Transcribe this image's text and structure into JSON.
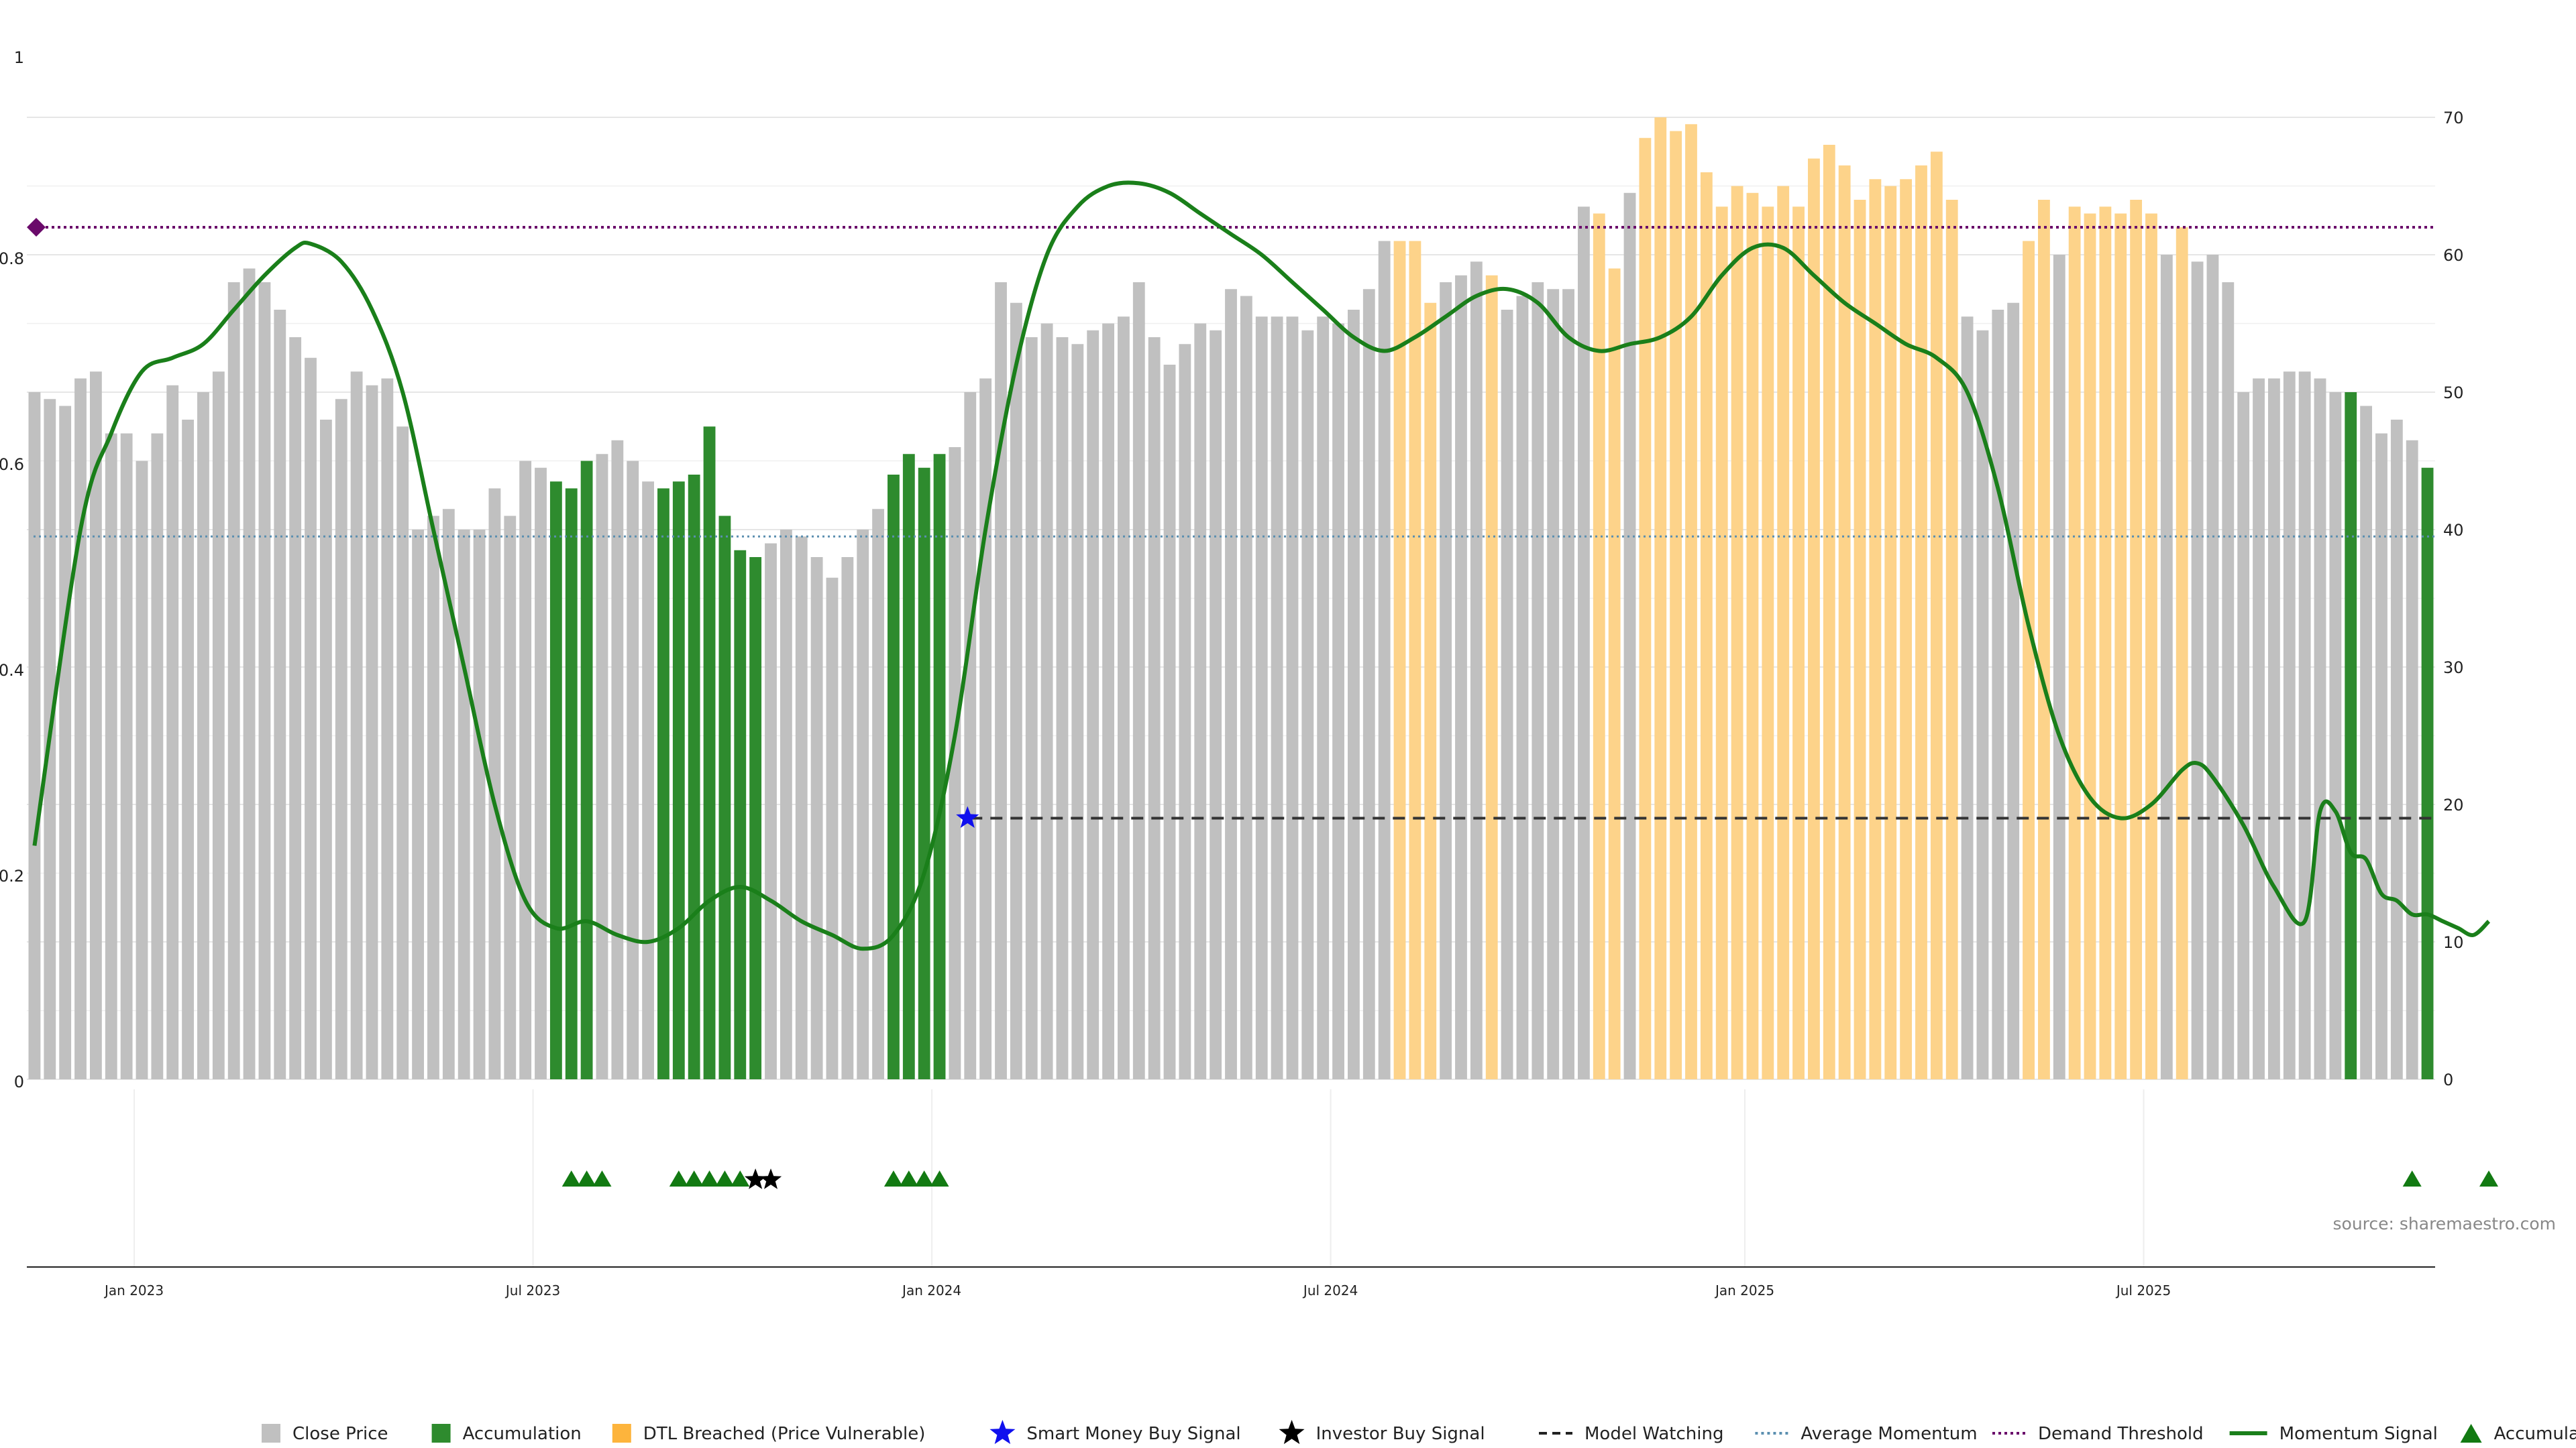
{
  "chart_data": {
    "type": "bar",
    "source_note": "source: sharemaestro.com",
    "left_axis": {
      "ticks": [
        "0",
        "0.2",
        "0.4",
        "0.6",
        "0.8",
        "1"
      ]
    },
    "right_axis": {
      "ticks": [
        "0",
        "10",
        "20",
        "30",
        "40",
        "50",
        "60",
        "70"
      ]
    },
    "x_ticks": [
      "Jan 2023",
      "Jul 2023",
      "Jan 2024",
      "Jul 2024",
      "Jan 2025",
      "Jul 2025"
    ],
    "colors": {
      "close": "#c0c0c0",
      "accumulation": "#2e8b2e",
      "dtl": "#fdd38a",
      "momentum": "#1a7f1a",
      "avg_momentum": "#5b8fb0",
      "demand": "#6a0a6a",
      "watching": "#333333"
    },
    "close_price": [
      50,
      49.5,
      49,
      51,
      51.5,
      47,
      47,
      45,
      47,
      50.5,
      48,
      50,
      51.5,
      58,
      59,
      58,
      56,
      54,
      52.5,
      48,
      49.5,
      51.5,
      50.5,
      51,
      47.5,
      40,
      41,
      41.5,
      40,
      40,
      43,
      41,
      45,
      44.5,
      43.5,
      43,
      45,
      45.5,
      46.5,
      45,
      43.5,
      43,
      43.5,
      44,
      47.5,
      41,
      38.5,
      38,
      39,
      40,
      39.5,
      38,
      36.5,
      38,
      40,
      41.5,
      44,
      45.5,
      44.5,
      45.5,
      46,
      50,
      51,
      58,
      56.5,
      54,
      55,
      54,
      53.5,
      54.5,
      55,
      55.5,
      58,
      54,
      52,
      53.5,
      55,
      54.5,
      57.5,
      57,
      55.5,
      55.5,
      55.5,
      54.5,
      55.5,
      55,
      56,
      57.5,
      61,
      61,
      61,
      56.5,
      58,
      58.5,
      59.5,
      58.5,
      56,
      57,
      58,
      57.5,
      57.5,
      63.5,
      63,
      59,
      64.5,
      68.5,
      70,
      69,
      69.5,
      66,
      63.5,
      65,
      64.5,
      63.5,
      65,
      63.5,
      67,
      68,
      66.5,
      64,
      65.5,
      65,
      65.5,
      66.5,
      67.5,
      64,
      55.5,
      54.5,
      56,
      56.5,
      61,
      64,
      60,
      63.5,
      63,
      63.5,
      63,
      64,
      63,
      60,
      62,
      59.5,
      60,
      58,
      50,
      51,
      51,
      51.5,
      51.5,
      51,
      50,
      50,
      49,
      47,
      48,
      46.5,
      44.5
    ],
    "bar_type": [
      "close",
      "close",
      "close",
      "close",
      "close",
      "close",
      "close",
      "close",
      "close",
      "close",
      "close",
      "close",
      "close",
      "close",
      "close",
      "close",
      "close",
      "close",
      "close",
      "close",
      "close",
      "close",
      "close",
      "close",
      "close",
      "close",
      "close",
      "close",
      "close",
      "close",
      "close",
      "close",
      "close",
      "close",
      "accumulation",
      "accumulation",
      "accumulation",
      "close",
      "close",
      "close",
      "close",
      "accumulation",
      "accumulation",
      "accumulation",
      "accumulation",
      "accumulation",
      "accumulation",
      "accumulation",
      "close",
      "close",
      "close",
      "close",
      "close",
      "close",
      "close",
      "close",
      "accumulation",
      "accumulation",
      "accumulation",
      "accumulation",
      "close",
      "close",
      "close",
      "close",
      "close",
      "close",
      "close",
      "close",
      "close",
      "close",
      "close",
      "close",
      "close",
      "close",
      "close",
      "close",
      "close",
      "close",
      "close",
      "close",
      "close",
      "close",
      "close",
      "close",
      "close",
      "close",
      "close",
      "close",
      "close",
      "dtl",
      "dtl",
      "dtl",
      "close",
      "close",
      "close",
      "dtl",
      "close",
      "close",
      "close",
      "close",
      "close",
      "close",
      "dtl",
      "dtl",
      "close",
      "dtl",
      "dtl",
      "dtl",
      "dtl",
      "dtl",
      "dtl",
      "dtl",
      "dtl",
      "dtl",
      "dtl",
      "dtl",
      "dtl",
      "dtl",
      "dtl",
      "dtl",
      "dtl",
      "dtl",
      "dtl",
      "dtl",
      "dtl",
      "dtl",
      "close",
      "close",
      "close",
      "close",
      "dtl",
      "dtl",
      "close",
      "dtl",
      "dtl",
      "dtl",
      "dtl",
      "dtl",
      "dtl",
      "close",
      "dtl",
      "close",
      "close",
      "close",
      "close",
      "close",
      "close",
      "close",
      "close",
      "close",
      "close",
      "accumulation",
      "close",
      "close",
      "close",
      "close",
      "accumulation"
    ],
    "momentum_signal": [
      [
        0,
        17
      ],
      [
        3,
        40
      ],
      [
        5,
        47
      ],
      [
        7,
        51.5
      ],
      [
        9,
        52.5
      ],
      [
        11,
        53.5
      ],
      [
        13,
        56
      ],
      [
        15,
        58.5
      ],
      [
        17,
        60.5
      ],
      [
        18,
        60.8
      ],
      [
        20,
        59.5
      ],
      [
        22,
        56
      ],
      [
        24,
        50
      ],
      [
        26,
        40
      ],
      [
        28,
        30
      ],
      [
        30,
        20
      ],
      [
        32,
        13
      ],
      [
        34,
        11
      ],
      [
        36,
        11.5
      ],
      [
        38,
        10.5
      ],
      [
        40,
        10
      ],
      [
        42,
        11
      ],
      [
        44,
        13
      ],
      [
        46,
        14
      ],
      [
        48,
        13
      ],
      [
        50,
        11.5
      ],
      [
        52,
        10.5
      ],
      [
        54,
        9.5
      ],
      [
        56,
        10.5
      ],
      [
        58,
        15
      ],
      [
        60,
        25
      ],
      [
        62,
        40
      ],
      [
        64,
        52
      ],
      [
        66,
        60
      ],
      [
        68,
        63.5
      ],
      [
        70,
        65
      ],
      [
        72,
        65.2
      ],
      [
        74,
        64.5
      ],
      [
        76,
        63
      ],
      [
        78,
        61.5
      ],
      [
        80,
        60
      ],
      [
        82,
        58
      ],
      [
        84,
        56
      ],
      [
        86,
        54
      ],
      [
        88,
        53
      ],
      [
        90,
        54
      ],
      [
        92,
        55.5
      ],
      [
        94,
        57
      ],
      [
        96,
        57.5
      ],
      [
        98,
        56.5
      ],
      [
        100,
        54
      ],
      [
        102,
        53
      ],
      [
        104,
        53.5
      ],
      [
        106,
        54
      ],
      [
        108,
        55.5
      ],
      [
        110,
        58.5
      ],
      [
        112,
        60.5
      ],
      [
        114,
        60.5
      ],
      [
        116,
        58.5
      ],
      [
        118,
        56.5
      ],
      [
        120,
        55
      ],
      [
        122,
        53.5
      ],
      [
        124,
        52.5
      ],
      [
        126,
        50
      ],
      [
        128,
        43
      ],
      [
        130,
        33
      ],
      [
        132,
        25
      ],
      [
        134,
        20.5
      ],
      [
        136,
        19
      ],
      [
        138,
        20
      ],
      [
        140,
        22.5
      ],
      [
        141,
        23
      ],
      [
        142,
        22
      ],
      [
        144,
        18.5
      ],
      [
        146,
        14
      ],
      [
        148,
        11.5
      ],
      [
        149,
        19.5
      ],
      [
        150,
        19.5
      ],
      [
        151,
        16.5
      ],
      [
        152,
        16
      ],
      [
        153,
        13.5
      ],
      [
        154,
        13
      ],
      [
        155,
        12
      ],
      [
        156,
        12
      ],
      [
        157,
        11.5
      ],
      [
        158,
        11
      ],
      [
        159,
        10.5
      ],
      [
        160,
        11.5
      ]
    ],
    "model_watching": {
      "value": 19,
      "start_index": 61
    },
    "average_momentum": 39.5,
    "demand_threshold": 62,
    "smart_money_buy_signal_index": 61,
    "accumulation_markers": [
      35,
      36,
      37,
      42,
      43,
      44,
      45,
      46,
      56,
      57,
      58,
      59,
      155,
      160
    ],
    "investor_buy_markers": [
      47,
      48
    ],
    "legend": [
      {
        "label": "Close Price",
        "kind": "square",
        "color": "#c0c0c0"
      },
      {
        "label": "Accumulation",
        "kind": "square",
        "color": "#2e8b2e"
      },
      {
        "label": "DTL Breached (Price Vulnerable)",
        "kind": "square",
        "color": "#fdb43c"
      },
      {
        "label": "Smart Money Buy Signal",
        "kind": "star",
        "color": "#1010ee"
      },
      {
        "label": "Investor Buy Signal",
        "kind": "star",
        "color": "#000000"
      },
      {
        "label": "Model Watching",
        "kind": "dash",
        "color": "#222222"
      },
      {
        "label": "Average Momentum",
        "kind": "dot",
        "color": "#5b8fb0"
      },
      {
        "label": "Demand Threshold",
        "kind": "dot",
        "color": "#6a0a6a"
      },
      {
        "label": "Momentum Signal",
        "kind": "line",
        "color": "#1a7f1a"
      },
      {
        "label": "Accumulation",
        "kind": "triangle",
        "color": "#127a12"
      }
    ]
  }
}
